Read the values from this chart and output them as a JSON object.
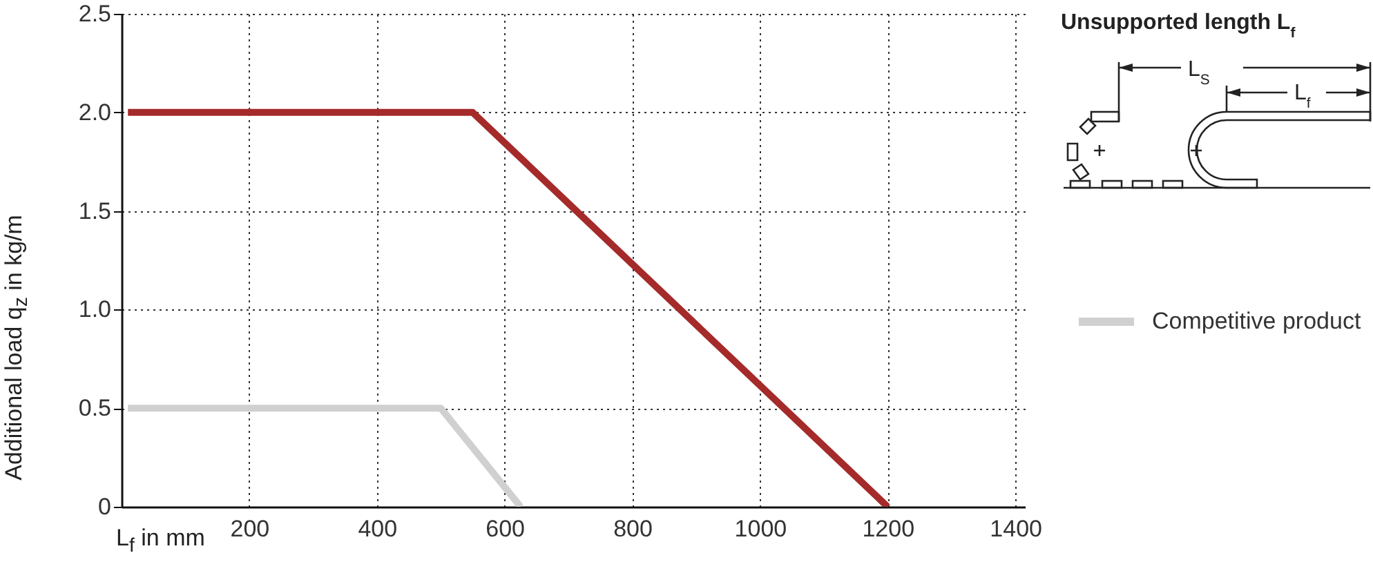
{
  "chart_data": {
    "type": "line",
    "xlabel": "L$_{f}$ in mm",
    "ylabel": "Additional load q$_{z}$ in kg/m",
    "annotations": [
      "Unsupported length L$_{f}$",
      "L$_{S}$",
      "L$_{f}$"
    ],
    "series": [
      {
        "color": "#a52a2a",
        "x": [
          10,
          550,
          1200
        ],
        "values": [
          2.0,
          2.0,
          0
        ]
      },
      {
        "name": "Competitive product",
        "color": "#d0d0d0",
        "x": [
          10,
          500,
          625
        ],
        "values": [
          0.5,
          0.5,
          0
        ]
      }
    ],
    "xlim": [
      0,
      1415
    ],
    "xticks": [
      200,
      400,
      600,
      800,
      1000,
      1200,
      1400
    ],
    "ylim": [
      0,
      2.5
    ],
    "yticks": [
      0,
      0.5,
      {
        "value": 1,
        "label": "1.0"
      },
      1.5,
      {
        "value": 2,
        "label": "2.0"
      },
      2.5
    ],
    "grid": true,
    "legend": "right",
    "line_style": "solid",
    "marker": "none"
  }
}
